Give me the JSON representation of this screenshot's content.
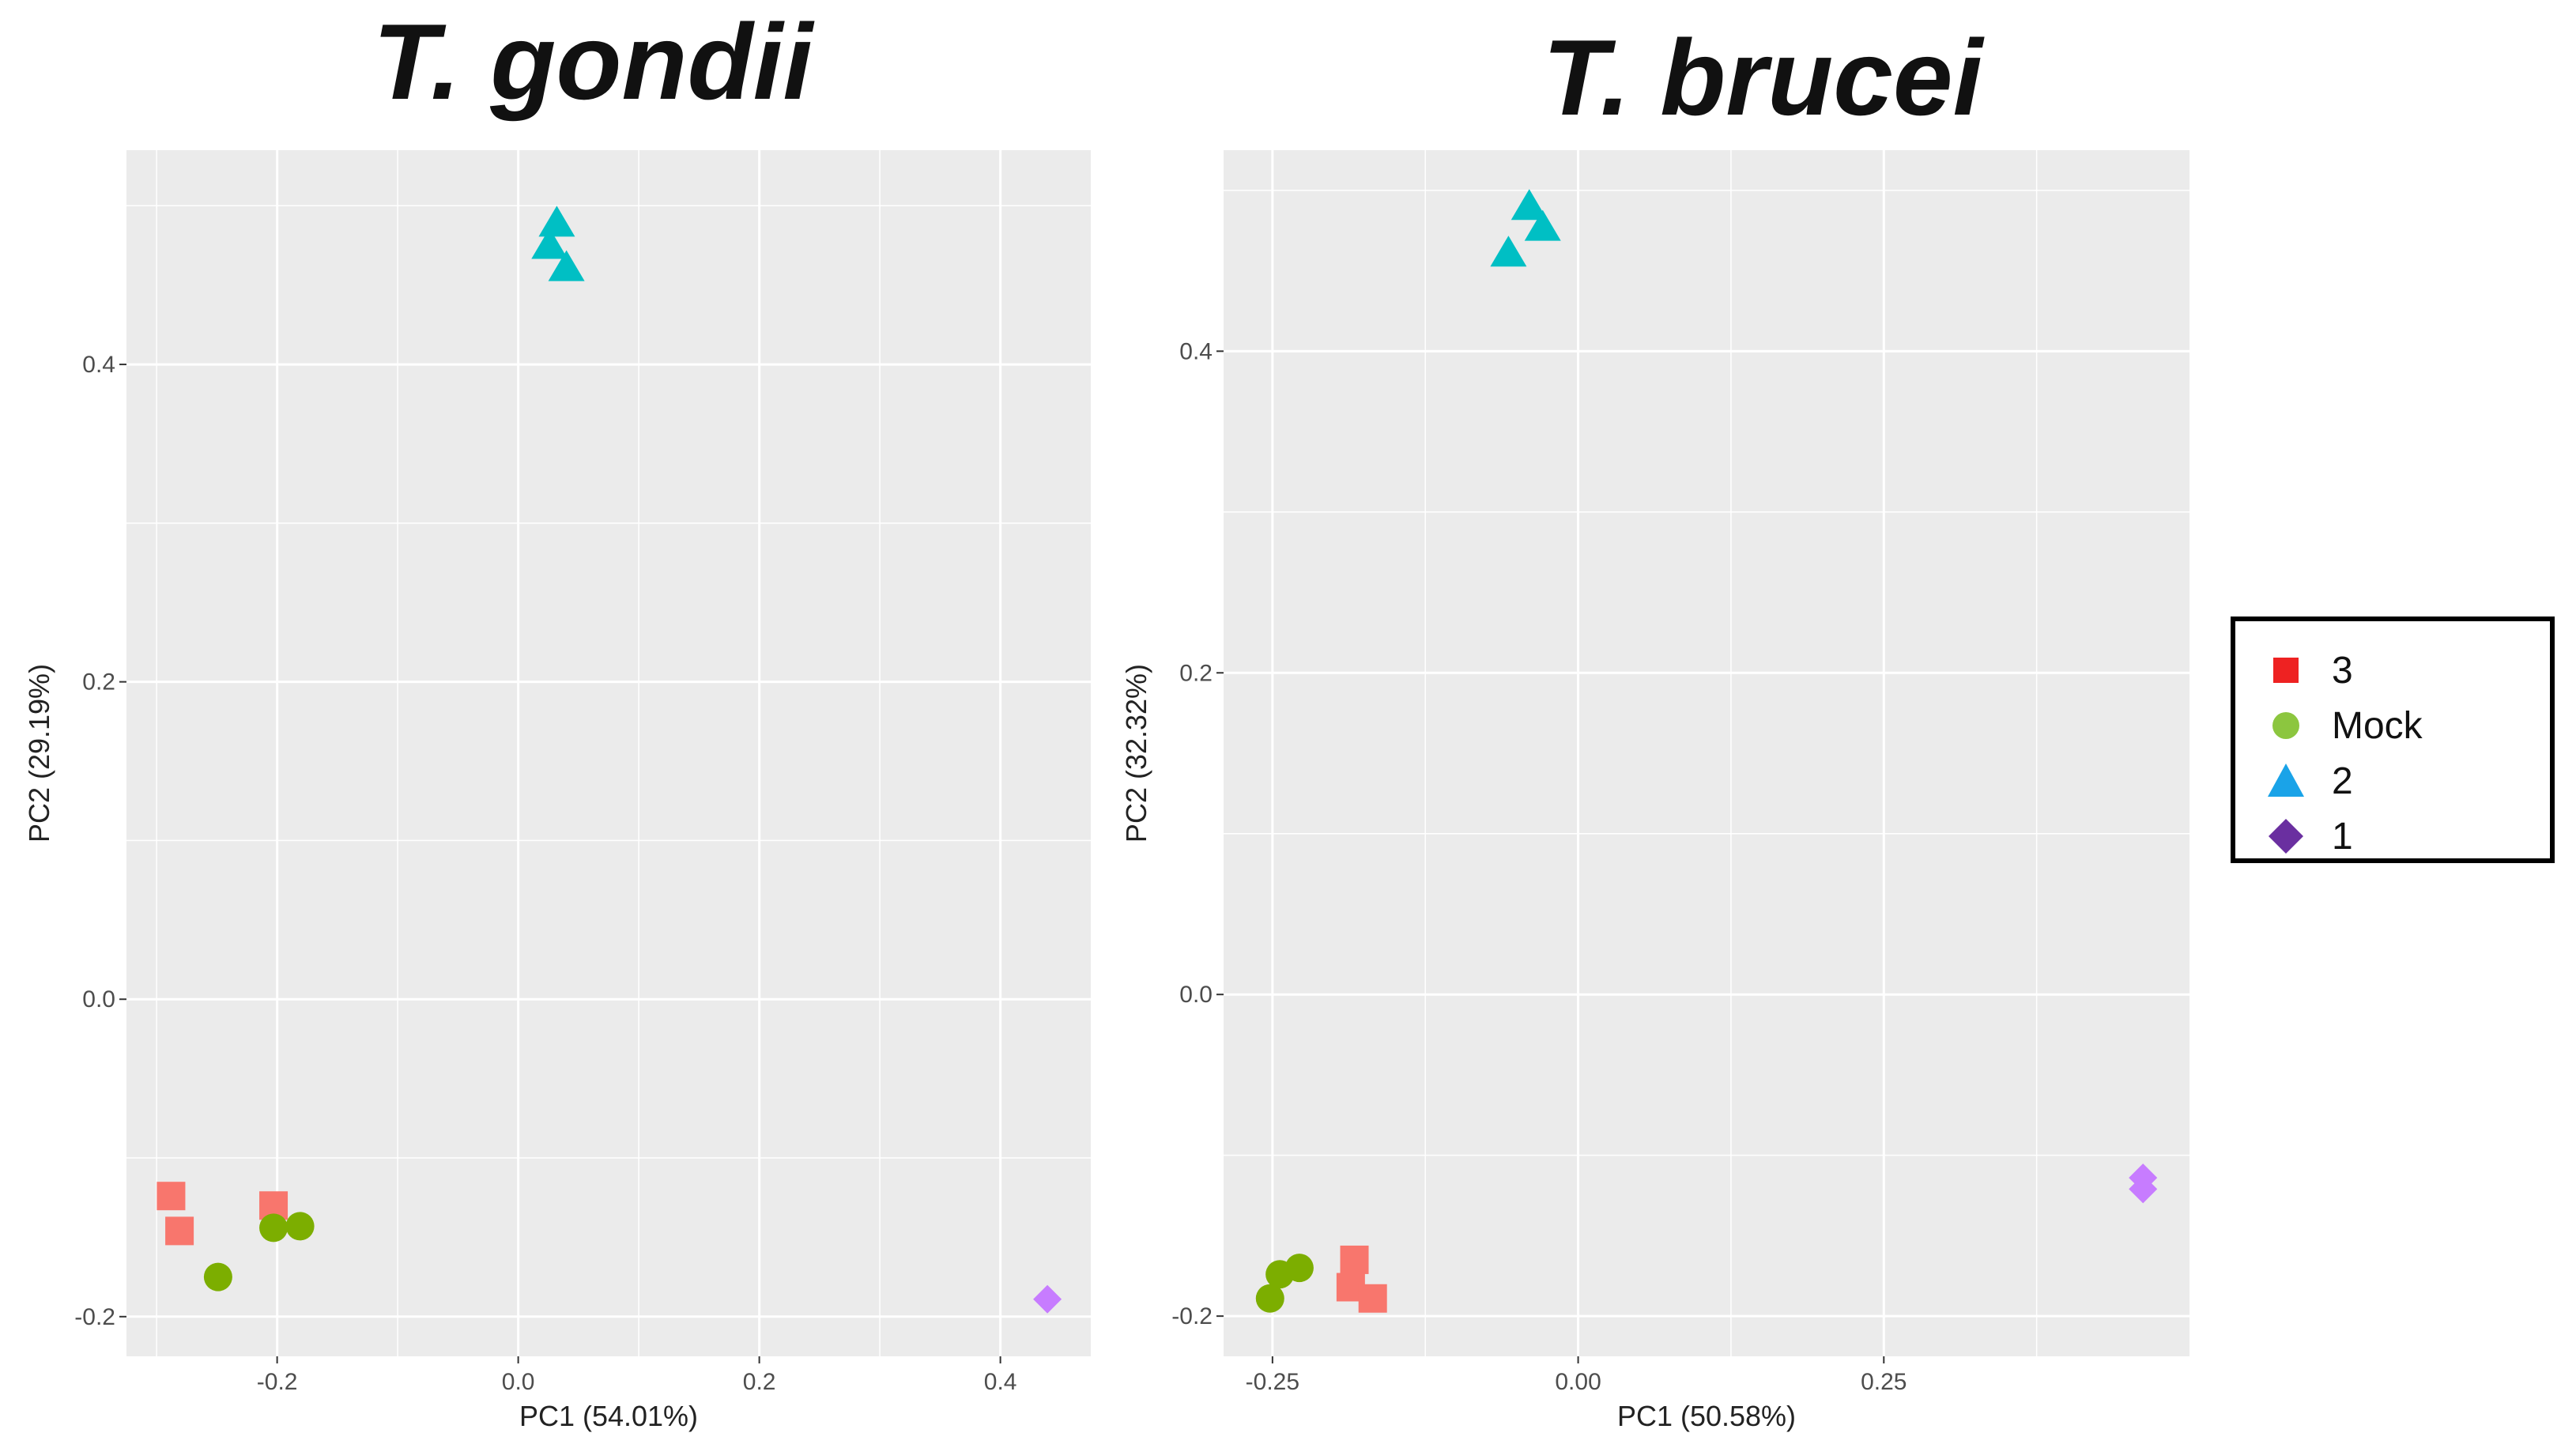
{
  "titles": {
    "left": "T. gondii",
    "right": "T. brucei"
  },
  "legend": {
    "items": [
      {
        "label": "3",
        "shape": "square",
        "color": "#ee2222"
      },
      {
        "label": "Mock",
        "shape": "circle",
        "color": "#8cc63f"
      },
      {
        "label": "2",
        "shape": "triangle",
        "color": "#1aa3e8"
      },
      {
        "label": "1",
        "shape": "diamond",
        "color": "#6a2fa0"
      }
    ]
  },
  "colors": {
    "panel_bg": "#ebebeb",
    "grid": "#ffffff",
    "group_3": "#f8766d",
    "group_mock": "#7cae00",
    "group_2": "#00bfc4",
    "group_1": "#c77cff"
  },
  "chart_data": [
    {
      "type": "scatter",
      "title": "T. gondii",
      "xlabel": "PC1 (54.01%)",
      "ylabel": "PC2 (29.19%)",
      "xlim": [
        -0.325,
        0.475
      ],
      "ylim": [
        -0.225,
        0.535
      ],
      "xticks": [
        -0.2,
        0.0,
        0.2,
        0.4
      ],
      "xtick_labels": [
        "-0.2",
        "0.0",
        "0.2",
        "0.4"
      ],
      "yticks": [
        -0.2,
        0.0,
        0.2,
        0.4
      ],
      "ytick_labels": [
        "-0.2",
        "0.0",
        "0.2",
        "0.4"
      ],
      "grid": true,
      "series": [
        {
          "name": "3",
          "shape": "square",
          "points": [
            [
              -0.288,
              -0.124
            ],
            [
              -0.281,
              -0.146
            ],
            [
              -0.203,
              -0.13
            ]
          ]
        },
        {
          "name": "Mock",
          "shape": "circle",
          "points": [
            [
              -0.249,
              -0.175
            ],
            [
              -0.203,
              -0.144
            ],
            [
              -0.181,
              -0.143
            ]
          ]
        },
        {
          "name": "2",
          "shape": "triangle",
          "points": [
            [
              0.032,
              0.489
            ],
            [
              0.026,
              0.475
            ],
            [
              0.04,
              0.461
            ]
          ]
        },
        {
          "name": "1",
          "shape": "diamond",
          "points": [
            [
              0.439,
              -0.189
            ]
          ]
        }
      ]
    },
    {
      "type": "scatter",
      "title": "T. brucei",
      "xlabel": "PC1 (50.58%)",
      "ylabel": "PC2 (32.32%)",
      "xlim": [
        -0.29,
        0.5
      ],
      "ylim": [
        -0.225,
        0.525
      ],
      "xticks": [
        -0.25,
        0.0,
        0.25
      ],
      "xtick_labels": [
        "-0.25",
        "0.00",
        "0.25"
      ],
      "yticks": [
        -0.2,
        0.0,
        0.2,
        0.4
      ],
      "ytick_labels": [
        "-0.2",
        "0.0",
        "0.2",
        "0.4"
      ],
      "grid": true,
      "series": [
        {
          "name": "3",
          "shape": "square",
          "points": [
            [
              -0.183,
              -0.165
            ],
            [
              -0.186,
              -0.182
            ],
            [
              -0.168,
              -0.189
            ]
          ]
        },
        {
          "name": "Mock",
          "shape": "circle",
          "points": [
            [
              -0.252,
              -0.189
            ],
            [
              -0.244,
              -0.174
            ],
            [
              -0.228,
              -0.17
            ]
          ]
        },
        {
          "name": "2",
          "shape": "triangle",
          "points": [
            [
              -0.04,
              0.49
            ],
            [
              -0.029,
              0.477
            ],
            [
              -0.057,
              0.461
            ]
          ]
        },
        {
          "name": "1",
          "shape": "diamond",
          "points": [
            [
              0.462,
              -0.114
            ],
            [
              0.462,
              -0.121
            ]
          ]
        }
      ]
    }
  ]
}
